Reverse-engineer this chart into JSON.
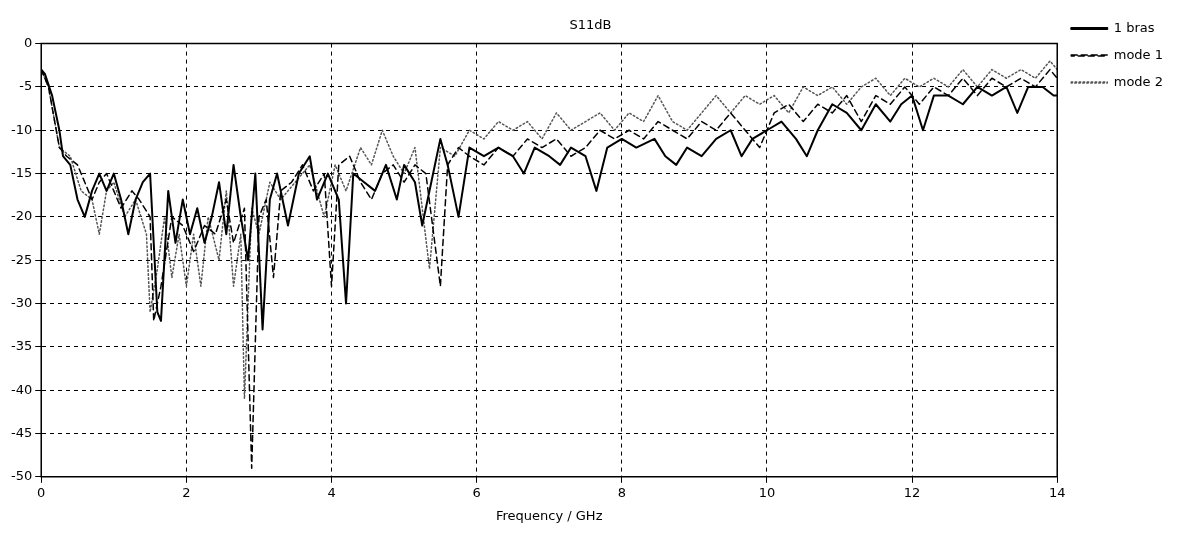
{
  "chart_data": {
    "type": "line",
    "title": "S11dB",
    "xlabel": "Frequency / GHz",
    "xlim": [
      0,
      14
    ],
    "xticks": [
      0,
      2,
      4,
      6,
      8,
      10,
      12,
      14
    ],
    "ylim": [
      -50,
      0
    ],
    "yticks": [
      -50,
      -45,
      -40,
      -35,
      -30,
      -25,
      -20,
      -15,
      -10,
      -5,
      0
    ],
    "grid": true,
    "legend": "top right",
    "marker": "none",
    "series": [
      {
        "name": "1 bras",
        "color": "#000000",
        "line_style": "solid",
        "x": [
          0,
          0.05,
          0.15,
          0.25,
          0.3,
          0.4,
          0.5,
          0.6,
          0.7,
          0.8,
          0.9,
          1.0,
          1.1,
          1.2,
          1.3,
          1.4,
          1.5,
          1.6,
          1.65,
          1.75,
          1.85,
          1.95,
          2.05,
          2.15,
          2.25,
          2.35,
          2.45,
          2.55,
          2.65,
          2.75,
          2.85,
          2.95,
          3.05,
          3.15,
          3.25,
          3.4,
          3.55,
          3.7,
          3.8,
          3.95,
          4.1,
          4.2,
          4.3,
          4.45,
          4.6,
          4.75,
          4.9,
          5.0,
          5.15,
          5.25,
          5.4,
          5.5,
          5.6,
          5.75,
          5.9,
          6.1,
          6.3,
          6.5,
          6.65,
          6.8,
          7.0,
          7.15,
          7.3,
          7.5,
          7.65,
          7.8,
          8.0,
          8.2,
          8.45,
          8.6,
          8.75,
          8.9,
          9.1,
          9.3,
          9.5,
          9.65,
          9.8,
          10.0,
          10.2,
          10.4,
          10.55,
          10.7,
          10.9,
          11.1,
          11.3,
          11.5,
          11.7,
          11.85,
          12.0,
          12.15,
          12.3,
          12.5,
          12.7,
          12.9,
          13.1,
          13.3,
          13.45,
          13.6,
          13.8,
          13.95,
          14
        ],
        "values": [
          -3,
          -3.5,
          -6,
          -10,
          -13,
          -14,
          -18,
          -20,
          -17,
          -15,
          -17,
          -15,
          -18,
          -22,
          -18,
          -16,
          -15,
          -31,
          -32,
          -17,
          -23,
          -18,
          -22,
          -19,
          -23,
          -20,
          -16,
          -22,
          -14,
          -20,
          -25,
          -15,
          -33,
          -18,
          -15,
          -21,
          -15,
          -13,
          -18,
          -15,
          -18,
          -30,
          -15,
          -16,
          -17,
          -14,
          -18,
          -14,
          -16,
          -21,
          -15,
          -11,
          -14,
          -20,
          -12,
          -13,
          -12,
          -13,
          -15,
          -12,
          -13,
          -14,
          -12,
          -13,
          -17,
          -12,
          -11,
          -12,
          -11,
          -13,
          -14,
          -12,
          -13,
          -11,
          -10,
          -13,
          -11,
          -10,
          -9,
          -11,
          -13,
          -10,
          -7,
          -8,
          -10,
          -7,
          -9,
          -7,
          -6,
          -10,
          -6,
          -6,
          -7,
          -5,
          -6,
          -5,
          -8,
          -5,
          -5,
          -6,
          -6
        ]
      },
      {
        "name": "mode 1",
        "color": "#000000",
        "line_style": "dashed",
        "x": [
          0,
          0.1,
          0.25,
          0.35,
          0.5,
          0.6,
          0.7,
          0.8,
          0.9,
          1.0,
          1.1,
          1.25,
          1.35,
          1.5,
          1.55,
          1.65,
          1.8,
          1.95,
          2.1,
          2.25,
          2.4,
          2.55,
          2.65,
          2.8,
          2.9,
          3.0,
          3.1,
          3.2,
          3.3,
          3.45,
          3.6,
          3.75,
          3.9,
          4.0,
          4.1,
          4.25,
          4.4,
          4.55,
          4.7,
          4.85,
          5.0,
          5.15,
          5.3,
          5.5,
          5.6,
          5.75,
          5.9,
          6.1,
          6.3,
          6.5,
          6.7,
          6.9,
          7.1,
          7.3,
          7.5,
          7.7,
          7.9,
          8.1,
          8.3,
          8.5,
          8.7,
          8.9,
          9.1,
          9.3,
          9.5,
          9.7,
          9.9,
          10.1,
          10.3,
          10.5,
          10.7,
          10.9,
          11.1,
          11.3,
          11.5,
          11.7,
          11.9,
          12.1,
          12.3,
          12.5,
          12.7,
          12.9,
          13.1,
          13.3,
          13.5,
          13.7,
          13.9,
          14
        ],
        "values": [
          -3,
          -5,
          -12,
          -13,
          -14,
          -16,
          -18,
          -16,
          -15,
          -17,
          -19,
          -17,
          -18,
          -20,
          -32,
          -28,
          -20,
          -21,
          -24,
          -21,
          -22,
          -18,
          -23,
          -19,
          -49,
          -20,
          -18,
          -27,
          -17,
          -16,
          -14,
          -17,
          -15,
          -28,
          -14,
          -13,
          -16,
          -18,
          -15,
          -14,
          -16,
          -14,
          -15,
          -28,
          -14,
          -12,
          -13,
          -14,
          -12,
          -13,
          -11,
          -12,
          -11,
          -13,
          -12,
          -10,
          -11,
          -10,
          -11,
          -9,
          -10,
          -11,
          -9,
          -10,
          -8,
          -10,
          -12,
          -8,
          -7,
          -9,
          -7,
          -8,
          -6,
          -9,
          -6,
          -7,
          -5,
          -7,
          -5,
          -6,
          -4,
          -6,
          -4,
          -5,
          -4,
          -5,
          -3,
          -4
        ]
      },
      {
        "name": "mode 2",
        "color": "#555555",
        "line_style": "dotted",
        "x": [
          0,
          0.1,
          0.25,
          0.4,
          0.55,
          0.7,
          0.8,
          0.9,
          1.0,
          1.15,
          1.3,
          1.45,
          1.5,
          1.6,
          1.7,
          1.8,
          1.9,
          2.0,
          2.1,
          2.2,
          2.3,
          2.45,
          2.55,
          2.65,
          2.75,
          2.8,
          2.9,
          3.0,
          3.15,
          3.3,
          3.5,
          3.7,
          3.8,
          3.9,
          4.05,
          4.2,
          4.4,
          4.55,
          4.7,
          4.85,
          5.0,
          5.15,
          5.35,
          5.5,
          5.7,
          5.9,
          6.1,
          6.3,
          6.5,
          6.7,
          6.9,
          7.1,
          7.3,
          7.5,
          7.7,
          7.9,
          8.1,
          8.3,
          8.5,
          8.7,
          8.9,
          9.1,
          9.3,
          9.5,
          9.7,
          9.9,
          10.1,
          10.3,
          10.5,
          10.7,
          10.9,
          11.1,
          11.3,
          11.5,
          11.7,
          11.9,
          12.1,
          12.3,
          12.5,
          12.7,
          12.9,
          13.1,
          13.3,
          13.5,
          13.7,
          13.9,
          14
        ],
        "values": [
          -3,
          -5,
          -12,
          -13,
          -17,
          -18,
          -22,
          -17,
          -16,
          -20,
          -18,
          -22,
          -31,
          -26,
          -20,
          -27,
          -22,
          -28,
          -22,
          -28,
          -20,
          -25,
          -17,
          -28,
          -22,
          -41,
          -19,
          -22,
          -16,
          -18,
          -16,
          -14,
          -17,
          -20,
          -14,
          -17,
          -12,
          -14,
          -10,
          -13,
          -15,
          -12,
          -26,
          -12,
          -13,
          -10,
          -11,
          -9,
          -10,
          -9,
          -11,
          -8,
          -10,
          -9,
          -8,
          -10,
          -8,
          -9,
          -6,
          -9,
          -10,
          -8,
          -6,
          -8,
          -6,
          -7,
          -6,
          -8,
          -5,
          -6,
          -5,
          -7,
          -5,
          -4,
          -6,
          -4,
          -5,
          -4,
          -5,
          -3,
          -5,
          -3,
          -4,
          -3,
          -4,
          -2,
          -3
        ]
      }
    ]
  }
}
